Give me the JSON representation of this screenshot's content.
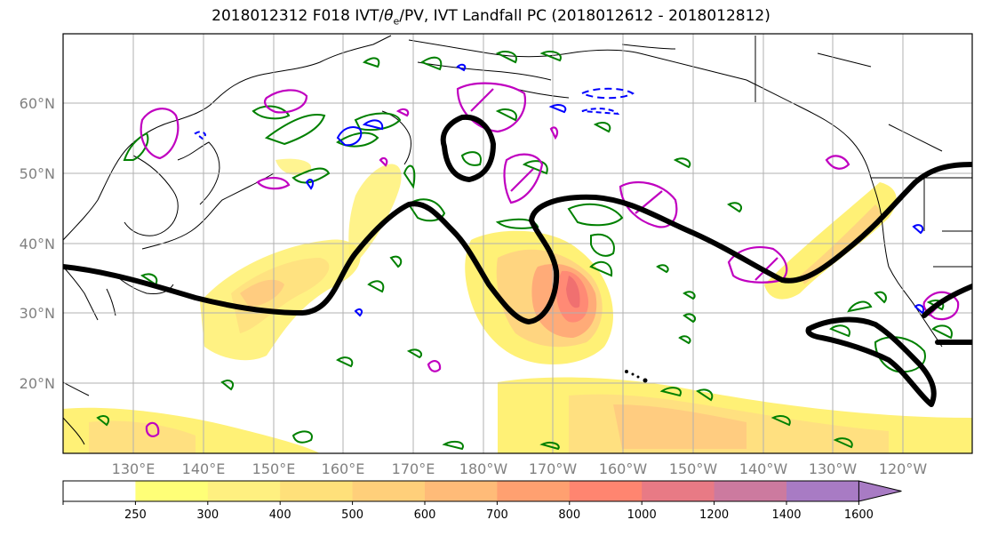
{
  "title": {
    "prefix": "2018012312 F018 IVT/",
    "theta": "θ",
    "theta_sub": "e",
    "suffix": "/PV, IVT Landfall PC (2018012612 - 2018012812)"
  },
  "map": {
    "projection": "PlateCarree",
    "lon_range": [
      120,
      250
    ],
    "lat_range": [
      10,
      70
    ],
    "lat_labels": [
      "60°N",
      "50°N",
      "40°N",
      "30°N",
      "20°N"
    ],
    "lon_labels": [
      "130°E",
      "140°E",
      "150°E",
      "160°E",
      "170°E",
      "180°W",
      "170°W",
      "160°W",
      "150°W",
      "140°W",
      "130°W",
      "120°W"
    ],
    "layers": {
      "ivt_fill": "IVT shading",
      "jet_line": "black thick contour",
      "theta_e": "green contours",
      "pv_positive": "magenta contours",
      "pv_negative": "blue contours"
    },
    "colors": {
      "jet": "#000000",
      "theta_e": "#008000",
      "pv_pos": "#c000c0",
      "pv_neg": "#0000ff",
      "coast": "#000000"
    }
  },
  "colorbar": {
    "ticks": [
      "250",
      "300",
      "400",
      "500",
      "600",
      "700",
      "800",
      "1000",
      "1200",
      "1400",
      "1600"
    ],
    "colors": [
      "#ffffff",
      "#ffff77",
      "#fff080",
      "#ffe07a",
      "#ffcf7a",
      "#ffbb78",
      "#ffa070",
      "#ff8570",
      "#e87a85",
      "#cc7a9f",
      "#a87bc4"
    ],
    "extend": "max"
  }
}
